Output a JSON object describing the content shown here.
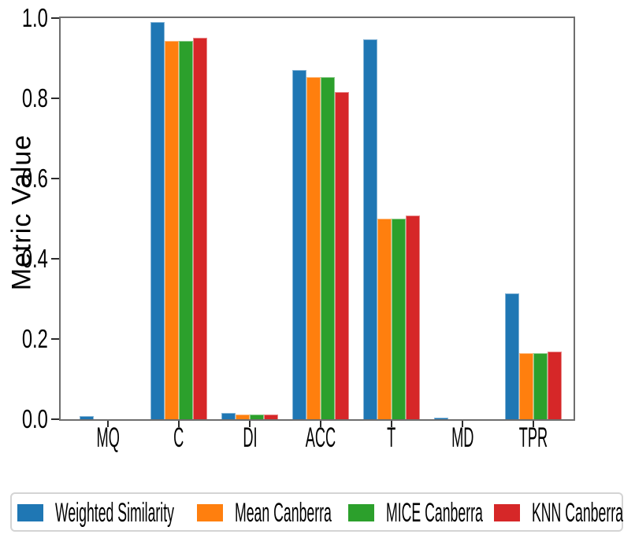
{
  "figure": {
    "background": "#ffffff"
  },
  "chart_data": {
    "type": "bar",
    "title": "",
    "xlabel": "",
    "ylabel": "Metric Value",
    "categories": [
      "MQ",
      "C",
      "DI",
      "ACC",
      "T",
      "MD",
      "TPR"
    ],
    "series": [
      {
        "name": "Weighted Similarity",
        "color": "#1f77b4",
        "values": [
          0.008,
          0.99,
          0.016,
          0.87,
          0.948,
          0.004,
          0.313
        ]
      },
      {
        "name": "Mean Canberra",
        "color": "#ff7f0e",
        "values": [
          0,
          0.943,
          0.011,
          0.852,
          0.5,
          0,
          0.164
        ]
      },
      {
        "name": "MICE Canberra",
        "color": "#2ca02c",
        "values": [
          0,
          0.944,
          0.012,
          0.852,
          0.5,
          0,
          0.165
        ]
      },
      {
        "name": "KNN Canberra",
        "color": "#d62728",
        "values": [
          0,
          0.951,
          0.012,
          0.816,
          0.508,
          0,
          0.169
        ]
      }
    ],
    "ylim": [
      0.0,
      1.0
    ],
    "yticks": [
      0.0,
      0.2,
      0.4,
      0.6,
      0.8,
      1.0
    ],
    "ytick_labels": [
      "0.0",
      "0.2",
      "0.4",
      "0.6",
      "0.8",
      "1.0"
    ],
    "grid": false,
    "legend_position": "bottom"
  }
}
